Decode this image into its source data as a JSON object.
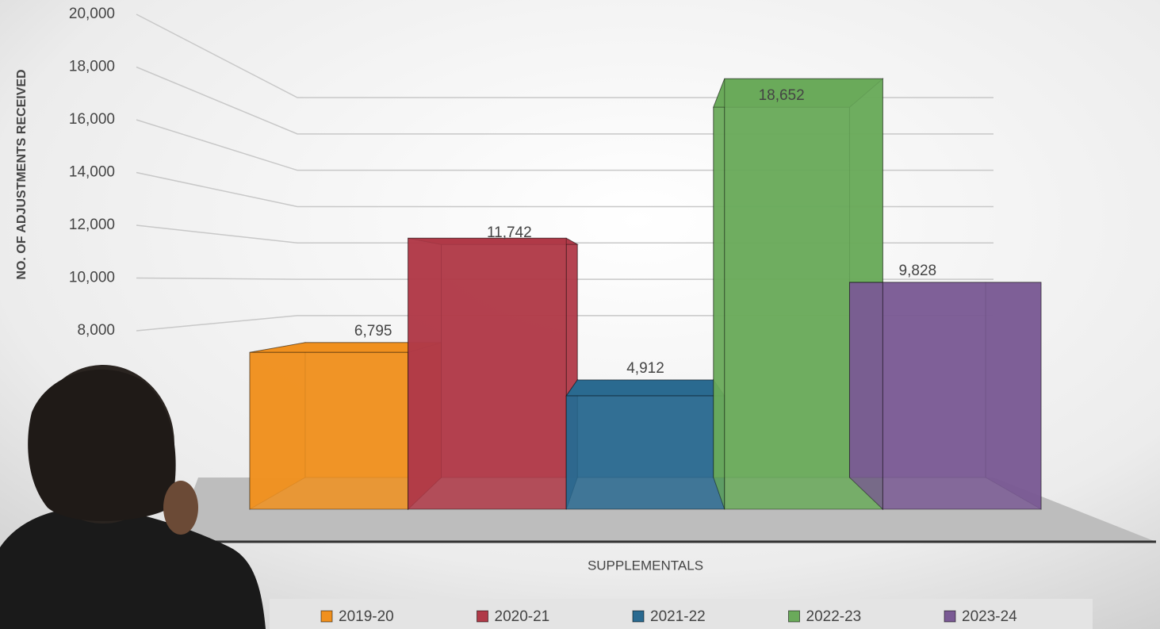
{
  "chart_data": {
    "type": "bar3d",
    "x_label": "SUPPLEMENTALS",
    "y_label": "NO. OF ADJUSTMENTS RECEIVED",
    "ylim": [
      0,
      20000
    ],
    "yticks": [
      {
        "value": 8000,
        "label": "8,000"
      },
      {
        "value": 10000,
        "label": "10,000"
      },
      {
        "value": 12000,
        "label": "12,000"
      },
      {
        "value": 14000,
        "label": "14,000"
      },
      {
        "value": 16000,
        "label": "16,000"
      },
      {
        "value": 18000,
        "label": "18,000"
      },
      {
        "value": 20000,
        "label": "20,000"
      }
    ],
    "grid": true,
    "legend": "bottom",
    "series": [
      {
        "name": "2019-20",
        "color": "#f0901e",
        "values": [
          6795
        ],
        "value_labels": [
          "6,795"
        ]
      },
      {
        "name": "2020-21",
        "color": "#b03a48",
        "values": [
          11742
        ],
        "value_labels": [
          "11,742"
        ]
      },
      {
        "name": "2021-22",
        "color": "#2a6a90",
        "values": [
          4912
        ],
        "value_labels": [
          "4,912"
        ]
      },
      {
        "name": "2022-23",
        "color": "#6aaa5a",
        "values": [
          18652
        ],
        "value_labels": [
          "18,652"
        ]
      },
      {
        "name": "2023-24",
        "color": "#7a5a94",
        "values": [
          9828
        ],
        "value_labels": [
          "9,828"
        ]
      }
    ]
  }
}
